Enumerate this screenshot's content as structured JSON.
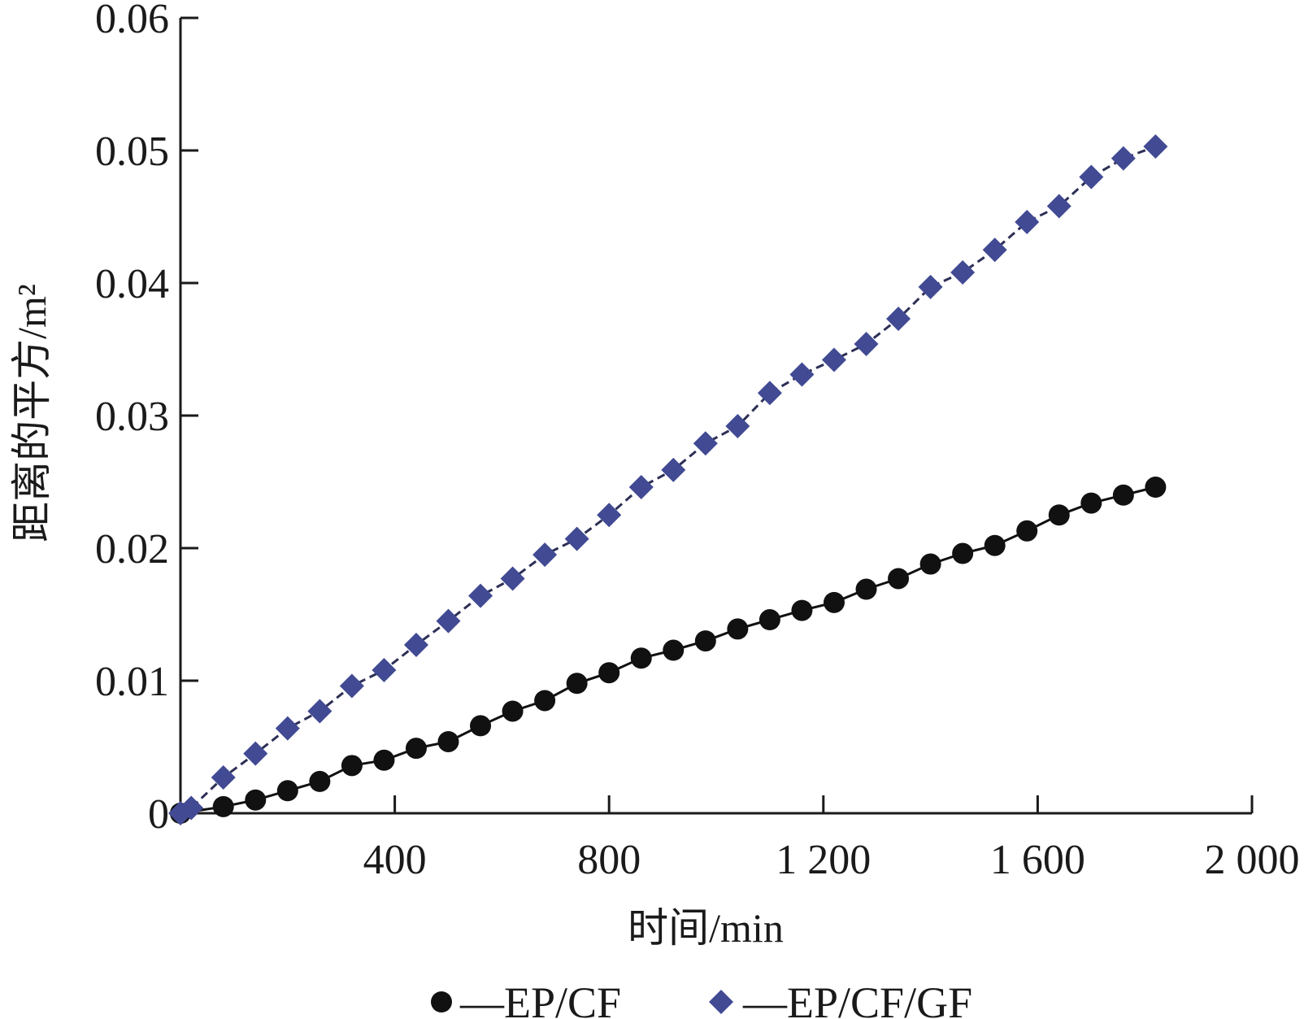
{
  "chart_data": {
    "type": "scatter",
    "title": "",
    "xlabel": "时间/min",
    "ylabel": "距离的平方/m²",
    "xlim": [
      0,
      2000
    ],
    "ylim": [
      0,
      0.06
    ],
    "x_ticks": [
      400,
      800,
      1200,
      1600,
      2000
    ],
    "x_tick_labels": [
      "400",
      "800",
      "1 200",
      "1 600",
      "2 000"
    ],
    "y_ticks": [
      0,
      0.01,
      0.02,
      0.03,
      0.04,
      0.05,
      0.06
    ],
    "y_tick_labels": [
      "0",
      "0.01",
      "0.02",
      "0.03",
      "0.04",
      "0.05",
      "0.06"
    ],
    "grid": false,
    "legend_position": "bottom",
    "series": [
      {
        "name": "EP/CF",
        "marker": "circle",
        "line": "solid",
        "color": "#111111",
        "x": [
          0,
          80,
          140,
          200,
          260,
          320,
          380,
          440,
          500,
          560,
          620,
          680,
          740,
          800,
          860,
          920,
          980,
          1040,
          1100,
          1160,
          1220,
          1280,
          1340,
          1400,
          1460,
          1520,
          1580,
          1640,
          1700,
          1760,
          1820
        ],
        "y": [
          0,
          0.0005,
          0.001,
          0.0017,
          0.0024,
          0.0036,
          0.004,
          0.0049,
          0.0054,
          0.0066,
          0.0077,
          0.0085,
          0.0098,
          0.0106,
          0.0117,
          0.0123,
          0.013,
          0.0139,
          0.0146,
          0.0153,
          0.0159,
          0.0169,
          0.0177,
          0.0188,
          0.0196,
          0.0202,
          0.0213,
          0.0225,
          0.0234,
          0.024,
          0.0246
        ]
      },
      {
        "name": "EP/CF/GF",
        "marker": "diamond",
        "line": "dashed",
        "color": "#414a93",
        "x": [
          0,
          20,
          80,
          140,
          200,
          260,
          320,
          380,
          440,
          500,
          560,
          620,
          680,
          740,
          800,
          860,
          920,
          980,
          1040,
          1100,
          1160,
          1220,
          1280,
          1340,
          1400,
          1460,
          1520,
          1580,
          1640,
          1700,
          1760,
          1820
        ],
        "y": [
          0,
          0.0004,
          0.0027,
          0.0045,
          0.0064,
          0.0077,
          0.0096,
          0.0108,
          0.0127,
          0.0145,
          0.0164,
          0.0177,
          0.0195,
          0.0207,
          0.0225,
          0.0246,
          0.0259,
          0.0279,
          0.0292,
          0.0317,
          0.0331,
          0.0342,
          0.0354,
          0.0373,
          0.0397,
          0.0408,
          0.0425,
          0.0446,
          0.0458,
          0.048,
          0.0494,
          0.0503
        ]
      }
    ]
  },
  "legend": {
    "items": [
      {
        "label": "—EP/CF"
      },
      {
        "label": "—EP/CF/GF"
      }
    ]
  }
}
